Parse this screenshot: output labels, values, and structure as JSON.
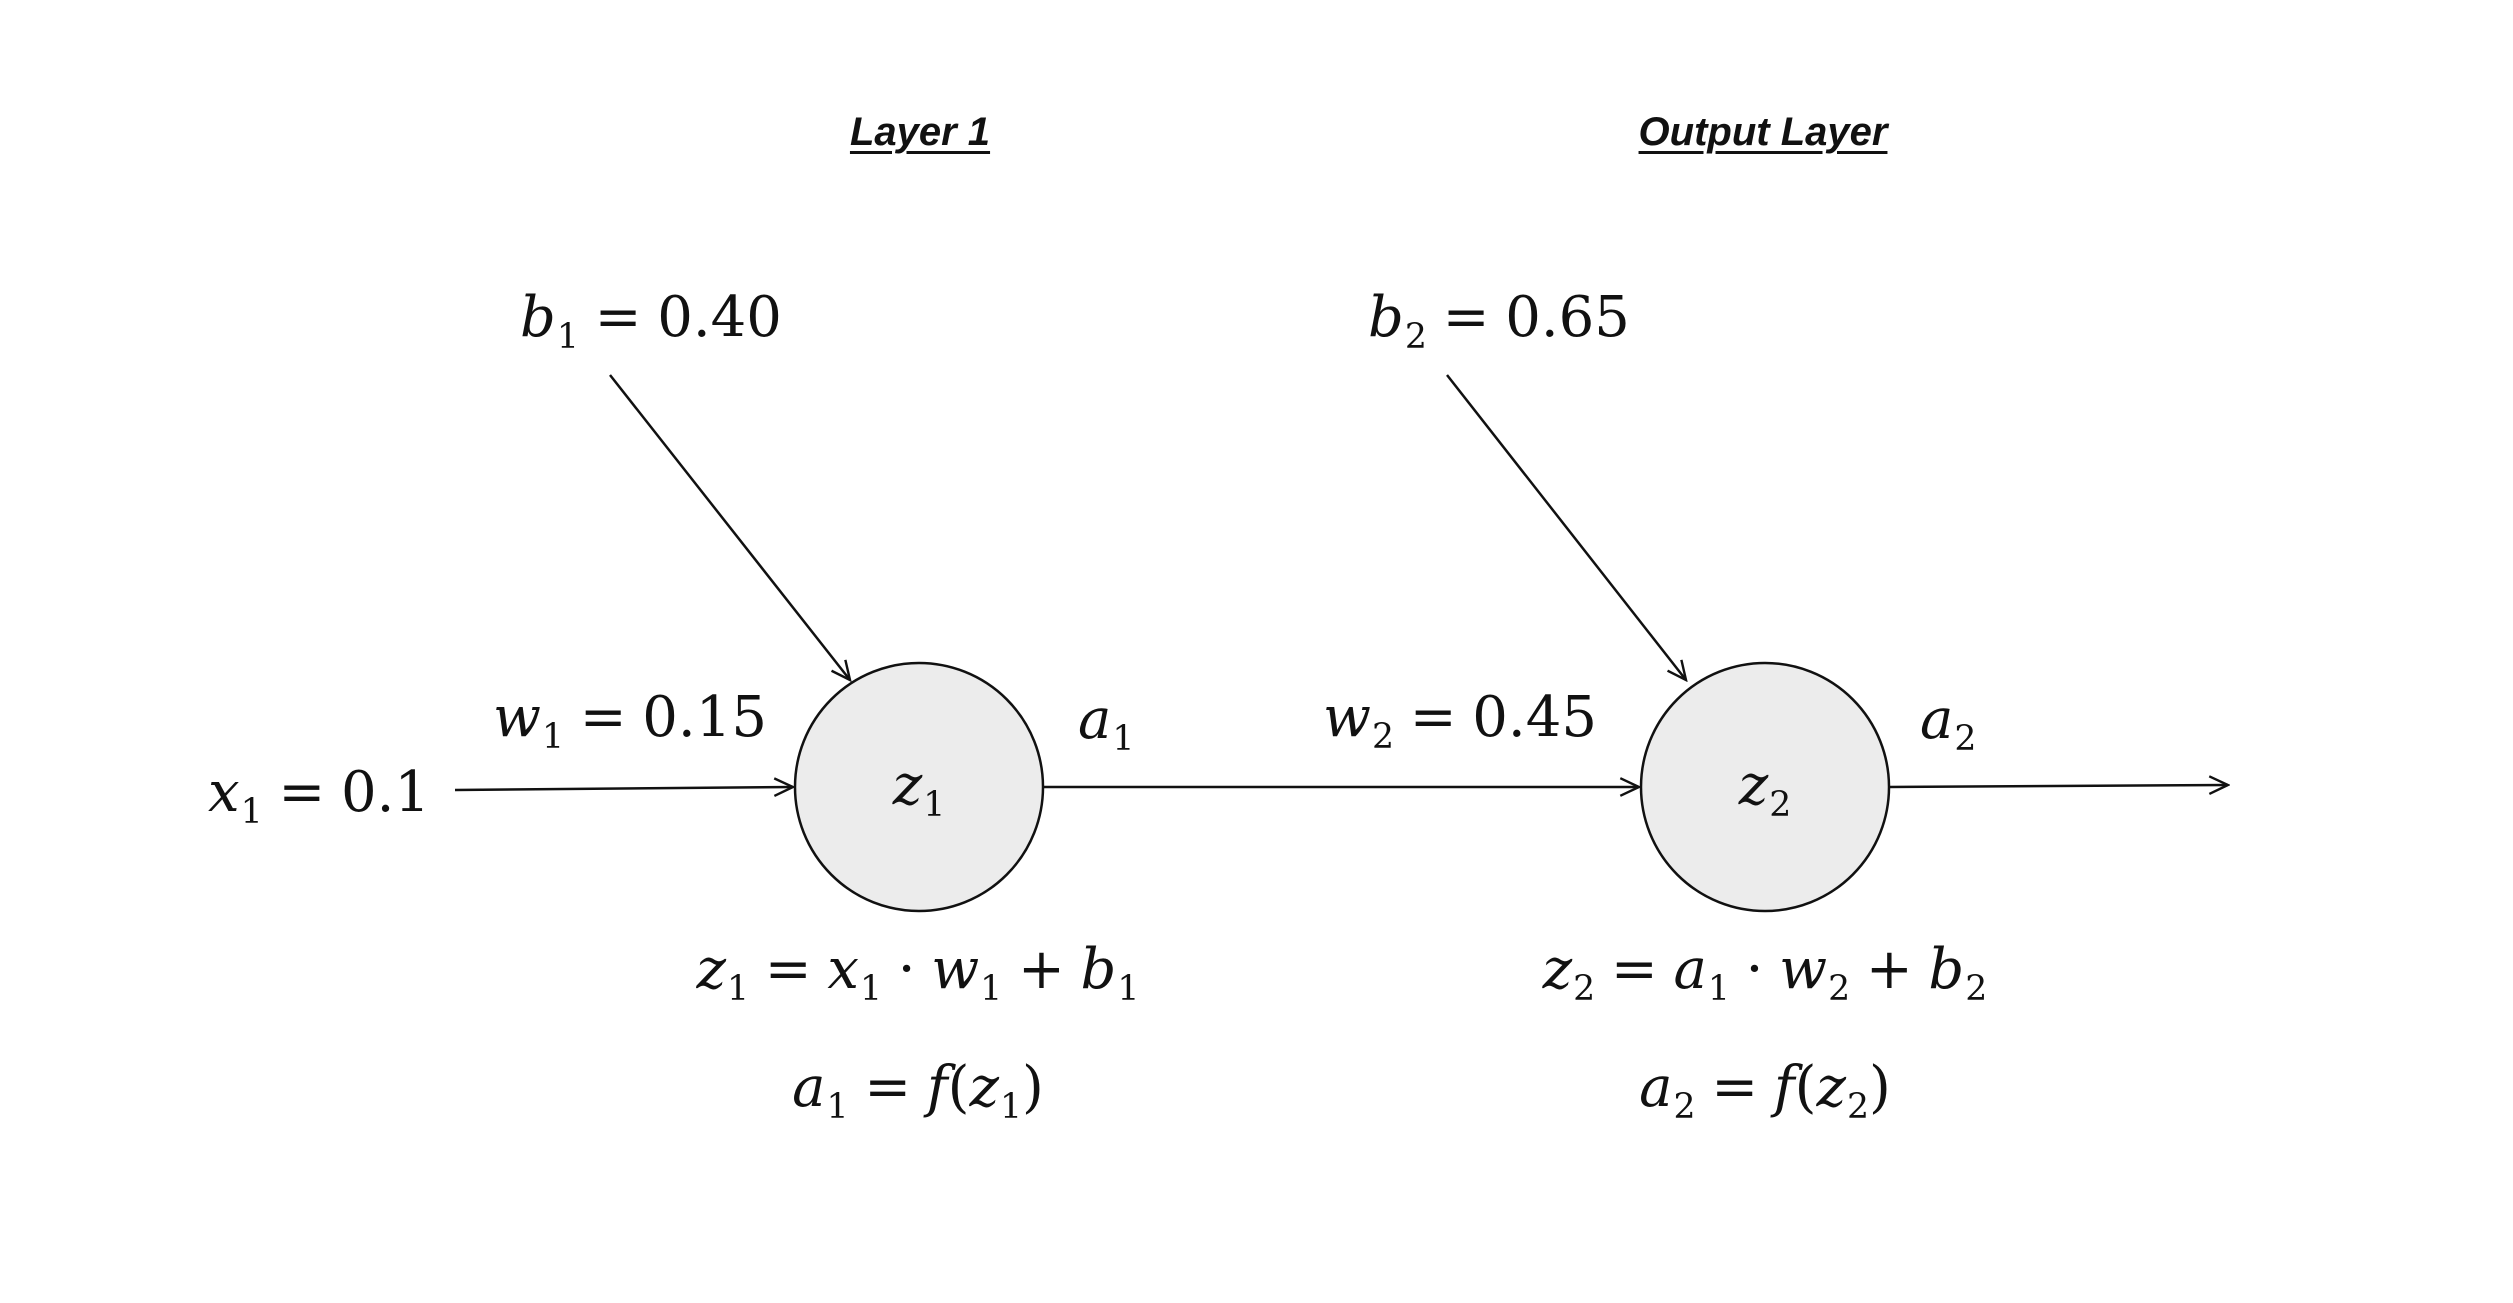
{
  "headings": {
    "layer1": "Layer 1",
    "output": "Output Layer"
  },
  "inputs": {
    "x1": "0.1",
    "w1": "0.15",
    "b1": "0.40",
    "w2": "0.45",
    "b2": "0.65"
  },
  "symbols": {
    "x": "x",
    "w": "w",
    "b": "b",
    "z": "z",
    "a": "a",
    "f": "f",
    "sub1": "1",
    "sub2": "2",
    "eq": "=",
    "dot": "·",
    "plus": "+",
    "lparen": "(",
    "rparen": ")"
  },
  "colors": {
    "node_fill": "#ececec",
    "stroke": "#111111"
  }
}
